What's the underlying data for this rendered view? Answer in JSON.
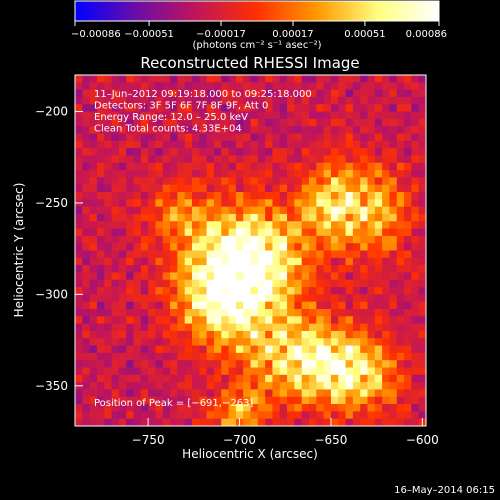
{
  "chart_data": {
    "type": "heatmap",
    "title": "Reconstructed RHESSI Image",
    "xlabel": "Heliocentric X (arcsec)",
    "ylabel": "Heliocentric Y (arcsec)",
    "xlim": [
      -790,
      -598
    ],
    "ylim": [
      -372,
      -180
    ],
    "x_ticks": [
      -750,
      -700,
      -650,
      -600
    ],
    "x_tick_labels": [
      "−750",
      "−700",
      "−650",
      "−600"
    ],
    "y_ticks": [
      -200,
      -250,
      -300,
      -350
    ],
    "y_tick_labels": [
      "−200",
      "−250",
      "−300",
      "−350"
    ],
    "colorbar": {
      "min": -0.00086,
      "max": 0.00086,
      "ticks": [
        -0.00086,
        -0.00051,
        -0.00017,
        0.00017,
        0.00051,
        0.00086
      ],
      "tick_labels": [
        "−0.00086",
        "−0.00051",
        "−0.00017",
        "0.00017",
        "0.00051",
        "0.00086"
      ],
      "units_label": "(photons cm⁻² s⁻¹ asec⁻²)",
      "colors": [
        "#0000ff",
        "#6a0da8",
        "#c0155a",
        "#ff3000",
        "#ff9a00",
        "#ffff80",
        "#ffffff"
      ]
    },
    "annotations": [
      "11–Jun–2012 09:19:18.000 to 09:25:18.000",
      "Detectors: 3F 5F 6F 7F 8F 9F, Att 0",
      "Energy Range: 12.0 – 25.0 keV",
      "Clean     Total counts: 4.33E+04"
    ],
    "peak_label": "Position of Peak = [−691,−263]",
    "peak": [
      -691,
      -263
    ],
    "image_sources": [
      {
        "x": -696,
        "y": -280,
        "amp": 1.0,
        "sx": 22,
        "sy": 20
      },
      {
        "x": -708,
        "y": -305,
        "amp": 0.7,
        "sx": 18,
        "sy": 16
      },
      {
        "x": -665,
        "y": -335,
        "amp": 0.75,
        "sx": 22,
        "sy": 16
      },
      {
        "x": -635,
        "y": -345,
        "amp": 0.55,
        "sx": 16,
        "sy": 14
      },
      {
        "x": -650,
        "y": -250,
        "amp": 0.6,
        "sx": 12,
        "sy": 15
      },
      {
        "x": -625,
        "y": -255,
        "amp": 0.5,
        "sx": 14,
        "sy": 18
      },
      {
        "x": -735,
        "y": -255,
        "amp": 0.35,
        "sx": 13,
        "sy": 12
      },
      {
        "x": -700,
        "y": -365,
        "amp": 0.45,
        "sx": 12,
        "sy": 10
      }
    ]
  },
  "footer": {
    "timestamp": "16–May–2014 06:15"
  }
}
